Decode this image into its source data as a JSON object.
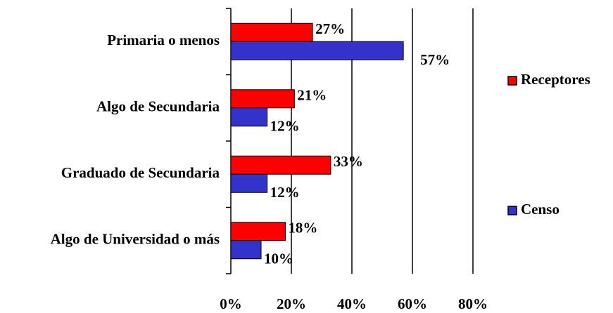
{
  "chart_data": {
    "type": "bar",
    "orientation": "horizontal",
    "categories": [
      "Primaria o menos",
      "Algo de Secundaria",
      "Graduado de Secundaria",
      "Algo de Universidad o más"
    ],
    "series": [
      {
        "name": "Receptores",
        "color": "#ff0000",
        "values": [
          27,
          21,
          33,
          18
        ],
        "value_labels": [
          "27%",
          "21%",
          "33%",
          "18%"
        ]
      },
      {
        "name": "Censo",
        "color": "#3333cc",
        "values": [
          57,
          12,
          12,
          10
        ],
        "value_labels": [
          "57%",
          "12%",
          "12%",
          "10%"
        ]
      }
    ],
    "xlim": [
      0,
      80
    ],
    "xticks": [
      {
        "value": 0,
        "label": "0%"
      },
      {
        "value": 20,
        "label": "20%"
      },
      {
        "value": 40,
        "label": "40%"
      },
      {
        "value": 60,
        "label": "60%"
      },
      {
        "value": 80,
        "label": "80%"
      }
    ],
    "grid": true,
    "legend": "right"
  }
}
